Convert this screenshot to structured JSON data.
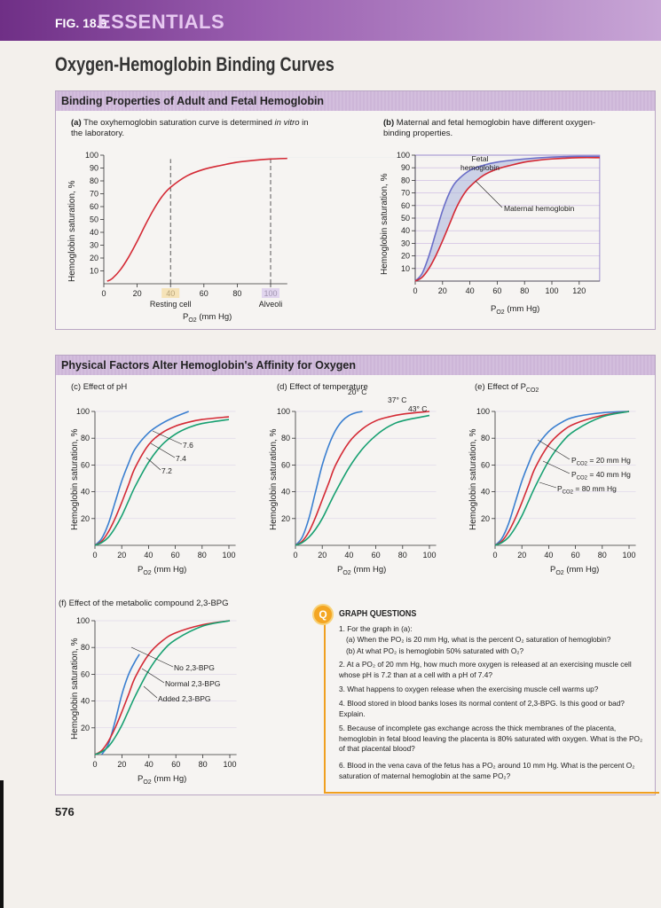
{
  "header": {
    "fig_label": "FIG. 18.9",
    "essentials": "ESSENTIALS",
    "title": "Oxygen-Hemoglobin Binding Curves"
  },
  "section1": {
    "title": "Binding Properties of Adult and Fetal Hemoglobin"
  },
  "section2": {
    "title": "Physical Factors Alter Hemoglobin's Affinity for Oxygen"
  },
  "captions": {
    "a_label": "(a)",
    "a_pre": "The oxyhemoglobin saturation curve is determined ",
    "a_em": "in vitro",
    "a_post": "in the laboratory.",
    "b_label": "(b)",
    "b_text": "Maternal and fetal hemoglobin have different oxygen-binding properties.",
    "c": "(c) Effect of pH",
    "d": "(d) Effect of temperature",
    "e_pre": "(e) Effect of P",
    "e_sub": "CO2",
    "f": "(f) Effect of the metabolic compound 2,3-BPG"
  },
  "axis": {
    "ylabel": "Hemoglobin saturation, %",
    "x_p": "P",
    "x_sub": "O2",
    "x_unit": " (mm Hg)"
  },
  "chart_data": [
    {
      "id": "a",
      "type": "line",
      "xlim": [
        0,
        110
      ],
      "ylim": [
        0,
        100
      ],
      "x_ticks": [
        0,
        20,
        40,
        60,
        80,
        100
      ],
      "y_ticks": [
        10,
        20,
        30,
        40,
        50,
        60,
        70,
        80,
        90,
        100
      ],
      "x_tick_notes": {
        "40": "Resting cell",
        "100": "Alveoli"
      },
      "reference_lines_x": [
        40,
        100
      ],
      "series": [
        {
          "color": "#d42a35",
          "points": [
            [
              2,
              2
            ],
            [
              5,
              4
            ],
            [
              10,
              11
            ],
            [
              15,
              21
            ],
            [
              20,
              33
            ],
            [
              25,
              46
            ],
            [
              30,
              58
            ],
            [
              35,
              68
            ],
            [
              40,
              75
            ],
            [
              50,
              84
            ],
            [
              60,
              89
            ],
            [
              70,
              92
            ],
            [
              80,
              94.5
            ],
            [
              90,
              96
            ],
            [
              100,
              97
            ],
            [
              110,
              97.5
            ]
          ]
        }
      ]
    },
    {
      "id": "b",
      "type": "line",
      "xlim": [
        0,
        135
      ],
      "ylim": [
        0,
        100
      ],
      "x_ticks": [
        0,
        20,
        40,
        60,
        80,
        100,
        120
      ],
      "y_ticks": [
        10,
        20,
        30,
        40,
        50,
        60,
        70,
        80,
        90,
        100
      ],
      "shaded_between": [
        "Fetal hemoglobin",
        "Maternal hemoglobin"
      ],
      "series": [
        {
          "name": "Fetal hemoglobin",
          "color": "#6a6ec8",
          "points": [
            [
              0,
              0
            ],
            [
              5,
              6
            ],
            [
              10,
              20
            ],
            [
              15,
              38
            ],
            [
              20,
              56
            ],
            [
              25,
              70
            ],
            [
              30,
              79
            ],
            [
              40,
              88
            ],
            [
              50,
              92
            ],
            [
              60,
              94.5
            ],
            [
              80,
              97
            ],
            [
              100,
              98.5
            ],
            [
              120,
              99
            ],
            [
              135,
              99
            ]
          ]
        },
        {
          "name": "Maternal hemoglobin",
          "color": "#d42a35",
          "points": [
            [
              0,
              0
            ],
            [
              5,
              3
            ],
            [
              10,
              10
            ],
            [
              15,
              20
            ],
            [
              20,
              32
            ],
            [
              25,
              45
            ],
            [
              30,
              58
            ],
            [
              35,
              68
            ],
            [
              40,
              75
            ],
            [
              50,
              84
            ],
            [
              60,
              89
            ],
            [
              70,
              92
            ],
            [
              80,
              94.5
            ],
            [
              90,
              96
            ],
            [
              100,
              97
            ],
            [
              120,
              98
            ],
            [
              135,
              98
            ]
          ]
        }
      ]
    },
    {
      "id": "c",
      "type": "line",
      "xlim": [
        0,
        105
      ],
      "ylim": [
        0,
        100
      ],
      "x_ticks": [
        0,
        20,
        40,
        60,
        80,
        100
      ],
      "y_ticks": [
        20,
        40,
        60,
        80,
        100
      ],
      "series": [
        {
          "name": "7.6",
          "color": "#3a7fd0",
          "points": [
            [
              0,
              0
            ],
            [
              5,
              5
            ],
            [
              10,
              16
            ],
            [
              15,
              32
            ],
            [
              20,
              48
            ],
            [
              25,
              61
            ],
            [
              30,
              72
            ],
            [
              40,
              84
            ],
            [
              50,
              91
            ],
            [
              60,
              96
            ],
            [
              70,
              100
            ]
          ]
        },
        {
          "name": "7.4",
          "color": "#d42a35",
          "points": [
            [
              0,
              0
            ],
            [
              5,
              3
            ],
            [
              10,
              10
            ],
            [
              15,
              20
            ],
            [
              20,
              32
            ],
            [
              25,
              45
            ],
            [
              30,
              58
            ],
            [
              40,
              75
            ],
            [
              50,
              84
            ],
            [
              60,
              89
            ],
            [
              70,
              92
            ],
            [
              80,
              94
            ],
            [
              100,
              96
            ]
          ]
        },
        {
          "name": "7.2",
          "color": "#17a071",
          "points": [
            [
              0,
              0
            ],
            [
              5,
              2
            ],
            [
              10,
              6
            ],
            [
              15,
              13
            ],
            [
              20,
              22
            ],
            [
              25,
              33
            ],
            [
              30,
              44
            ],
            [
              40,
              62
            ],
            [
              50,
              75
            ],
            [
              60,
              83
            ],
            [
              70,
              88
            ],
            [
              80,
              91
            ],
            [
              100,
              94
            ]
          ]
        }
      ]
    },
    {
      "id": "d",
      "type": "line",
      "xlim": [
        0,
        105
      ],
      "ylim": [
        0,
        100
      ],
      "x_ticks": [
        0,
        20,
        40,
        60,
        80,
        100
      ],
      "y_ticks": [
        20,
        40,
        60,
        80,
        100
      ],
      "series": [
        {
          "name": "20° C",
          "color": "#3a7fd0",
          "points": [
            [
              0,
              0
            ],
            [
              5,
              6
            ],
            [
              10,
              20
            ],
            [
              15,
              40
            ],
            [
              20,
              60
            ],
            [
              25,
              75
            ],
            [
              30,
              86
            ],
            [
              35,
              93
            ],
            [
              40,
              97
            ],
            [
              45,
              99
            ],
            [
              50,
              100
            ]
          ]
        },
        {
          "name": "37° C",
          "color": "#d42a35",
          "points": [
            [
              0,
              0
            ],
            [
              5,
              3
            ],
            [
              10,
              10
            ],
            [
              15,
              21
            ],
            [
              20,
              34
            ],
            [
              25,
              47
            ],
            [
              30,
              60
            ],
            [
              40,
              77
            ],
            [
              50,
              87
            ],
            [
              60,
              93
            ],
            [
              70,
              96
            ],
            [
              80,
              98
            ],
            [
              100,
              100
            ]
          ]
        },
        {
          "name": "43° C",
          "color": "#17a071",
          "points": [
            [
              0,
              0
            ],
            [
              5,
              2
            ],
            [
              10,
              6
            ],
            [
              15,
              12
            ],
            [
              20,
              20
            ],
            [
              25,
              30
            ],
            [
              30,
              40
            ],
            [
              40,
              58
            ],
            [
              50,
              72
            ],
            [
              60,
              82
            ],
            [
              70,
              89
            ],
            [
              80,
              93
            ],
            [
              100,
              97
            ]
          ]
        }
      ]
    },
    {
      "id": "e",
      "type": "line",
      "xlim": [
        0,
        105
      ],
      "ylim": [
        0,
        100
      ],
      "x_ticks": [
        0,
        20,
        40,
        60,
        80,
        100
      ],
      "y_ticks": [
        20,
        40,
        60,
        80,
        100
      ],
      "series": [
        {
          "name": "PCO2 = 20 mm Hg",
          "color": "#3a7fd0",
          "points": [
            [
              0,
              0
            ],
            [
              5,
              5
            ],
            [
              10,
              16
            ],
            [
              15,
              32
            ],
            [
              20,
              48
            ],
            [
              25,
              61
            ],
            [
              30,
              72
            ],
            [
              40,
              85
            ],
            [
              50,
              92
            ],
            [
              60,
              96
            ],
            [
              80,
              99
            ],
            [
              100,
              100
            ]
          ]
        },
        {
          "name": "PCO2 = 40 mm Hg",
          "color": "#d42a35",
          "points": [
            [
              0,
              0
            ],
            [
              5,
              3
            ],
            [
              10,
              10
            ],
            [
              15,
              20
            ],
            [
              20,
              32
            ],
            [
              25,
              45
            ],
            [
              30,
              58
            ],
            [
              40,
              75
            ],
            [
              50,
              85
            ],
            [
              60,
              91
            ],
            [
              80,
              97
            ],
            [
              100,
              100
            ]
          ]
        },
        {
          "name": "PCO2 = 80 mm Hg",
          "color": "#17a071",
          "points": [
            [
              0,
              0
            ],
            [
              5,
              2
            ],
            [
              10,
              6
            ],
            [
              15,
              13
            ],
            [
              20,
              22
            ],
            [
              25,
              33
            ],
            [
              30,
              44
            ],
            [
              40,
              63
            ],
            [
              50,
              77
            ],
            [
              60,
              86
            ],
            [
              80,
              96
            ],
            [
              100,
              100
            ]
          ]
        }
      ]
    },
    {
      "id": "f",
      "type": "line",
      "xlim": [
        0,
        105
      ],
      "ylim": [
        0,
        100
      ],
      "x_ticks": [
        0,
        20,
        40,
        60,
        80,
        100
      ],
      "y_ticks": [
        20,
        40,
        60,
        80,
        100
      ],
      "series": [
        {
          "name": "No 2,3-BPG",
          "color": "#3a7fd0",
          "points": [
            [
              5,
              0
            ],
            [
              10,
              8
            ],
            [
              15,
              25
            ],
            [
              20,
              45
            ],
            [
              25,
              60
            ],
            [
              30,
              70
            ],
            [
              33,
              75
            ]
          ]
        },
        {
          "name": "Normal 2,3-BPG",
          "color": "#d42a35",
          "points": [
            [
              0,
              0
            ],
            [
              5,
              3
            ],
            [
              10,
              10
            ],
            [
              15,
              20
            ],
            [
              20,
              32
            ],
            [
              25,
              45
            ],
            [
              30,
              58
            ],
            [
              40,
              75
            ],
            [
              50,
              85
            ],
            [
              60,
              91
            ],
            [
              80,
              97
            ],
            [
              100,
              100
            ]
          ]
        },
        {
          "name": "Added 2,3-BPG",
          "color": "#17a071",
          "points": [
            [
              0,
              0
            ],
            [
              5,
              2
            ],
            [
              10,
              6
            ],
            [
              15,
              13
            ],
            [
              20,
              22
            ],
            [
              25,
              33
            ],
            [
              30,
              44
            ],
            [
              40,
              63
            ],
            [
              50,
              77
            ],
            [
              60,
              86
            ],
            [
              80,
              96
            ],
            [
              100,
              100
            ]
          ]
        }
      ]
    }
  ],
  "annotations": {
    "b_fetal": "Fetal hemoglobin",
    "b_maternal": "Maternal hemoglobin",
    "c1": "7.6",
    "c2": "7.4",
    "c3": "7.2",
    "d1": "20° C",
    "d2": "37° C",
    "d3": "43° C",
    "e_p": "P",
    "e_sub": "CO2",
    "e1": " = 20 mm Hg",
    "e2": " = 40 mm Hg",
    "e3": " = 80 mm Hg",
    "f1": "No 2,3-BPG",
    "f2": "Normal 2,3-BPG",
    "f3": "Added 2,3-BPG"
  },
  "questions": {
    "icon": "Q",
    "title": "GRAPH QUESTIONS",
    "items": [
      "1. For the graph in (a):",
      "(a) When the PO₂ is 20 mm Hg, what is the percent O₂ saturation of hemoglobin?",
      "(b) At what PO₂ is hemoglobin 50% saturated with O₂?",
      "2. At a PO₂ of 20 mm Hg, how much more oxygen is released at an exercising muscle cell whose pH is 7.2 than at a cell with a pH of 7.4?",
      "3. What happens to oxygen release when the exercising muscle cell warms up?",
      "4. Blood stored in blood banks loses its normal content of 2,3-BPG. Is this good or bad? Explain.",
      "5. Because of incomplete gas exchange across the thick membranes of the placenta, hemoglobin in fetal blood leaving the placenta is 80% saturated with oxygen. What is the PO₂ of that placental blood?",
      "6. Blood in the vena cava of the fetus has a PO₂ around 10 mm Hg. What is the percent O₂ saturation of maternal hemoglobin at the same PO₂?"
    ]
  },
  "page_number": "576",
  "colors": {
    "banner": "#7a3e8e",
    "section_band": "#d0badb",
    "red": "#d42a35",
    "blue": "#3a7fd0",
    "green": "#17a071",
    "fetal": "#6a6ec8",
    "question_accent": "#f4a623"
  }
}
